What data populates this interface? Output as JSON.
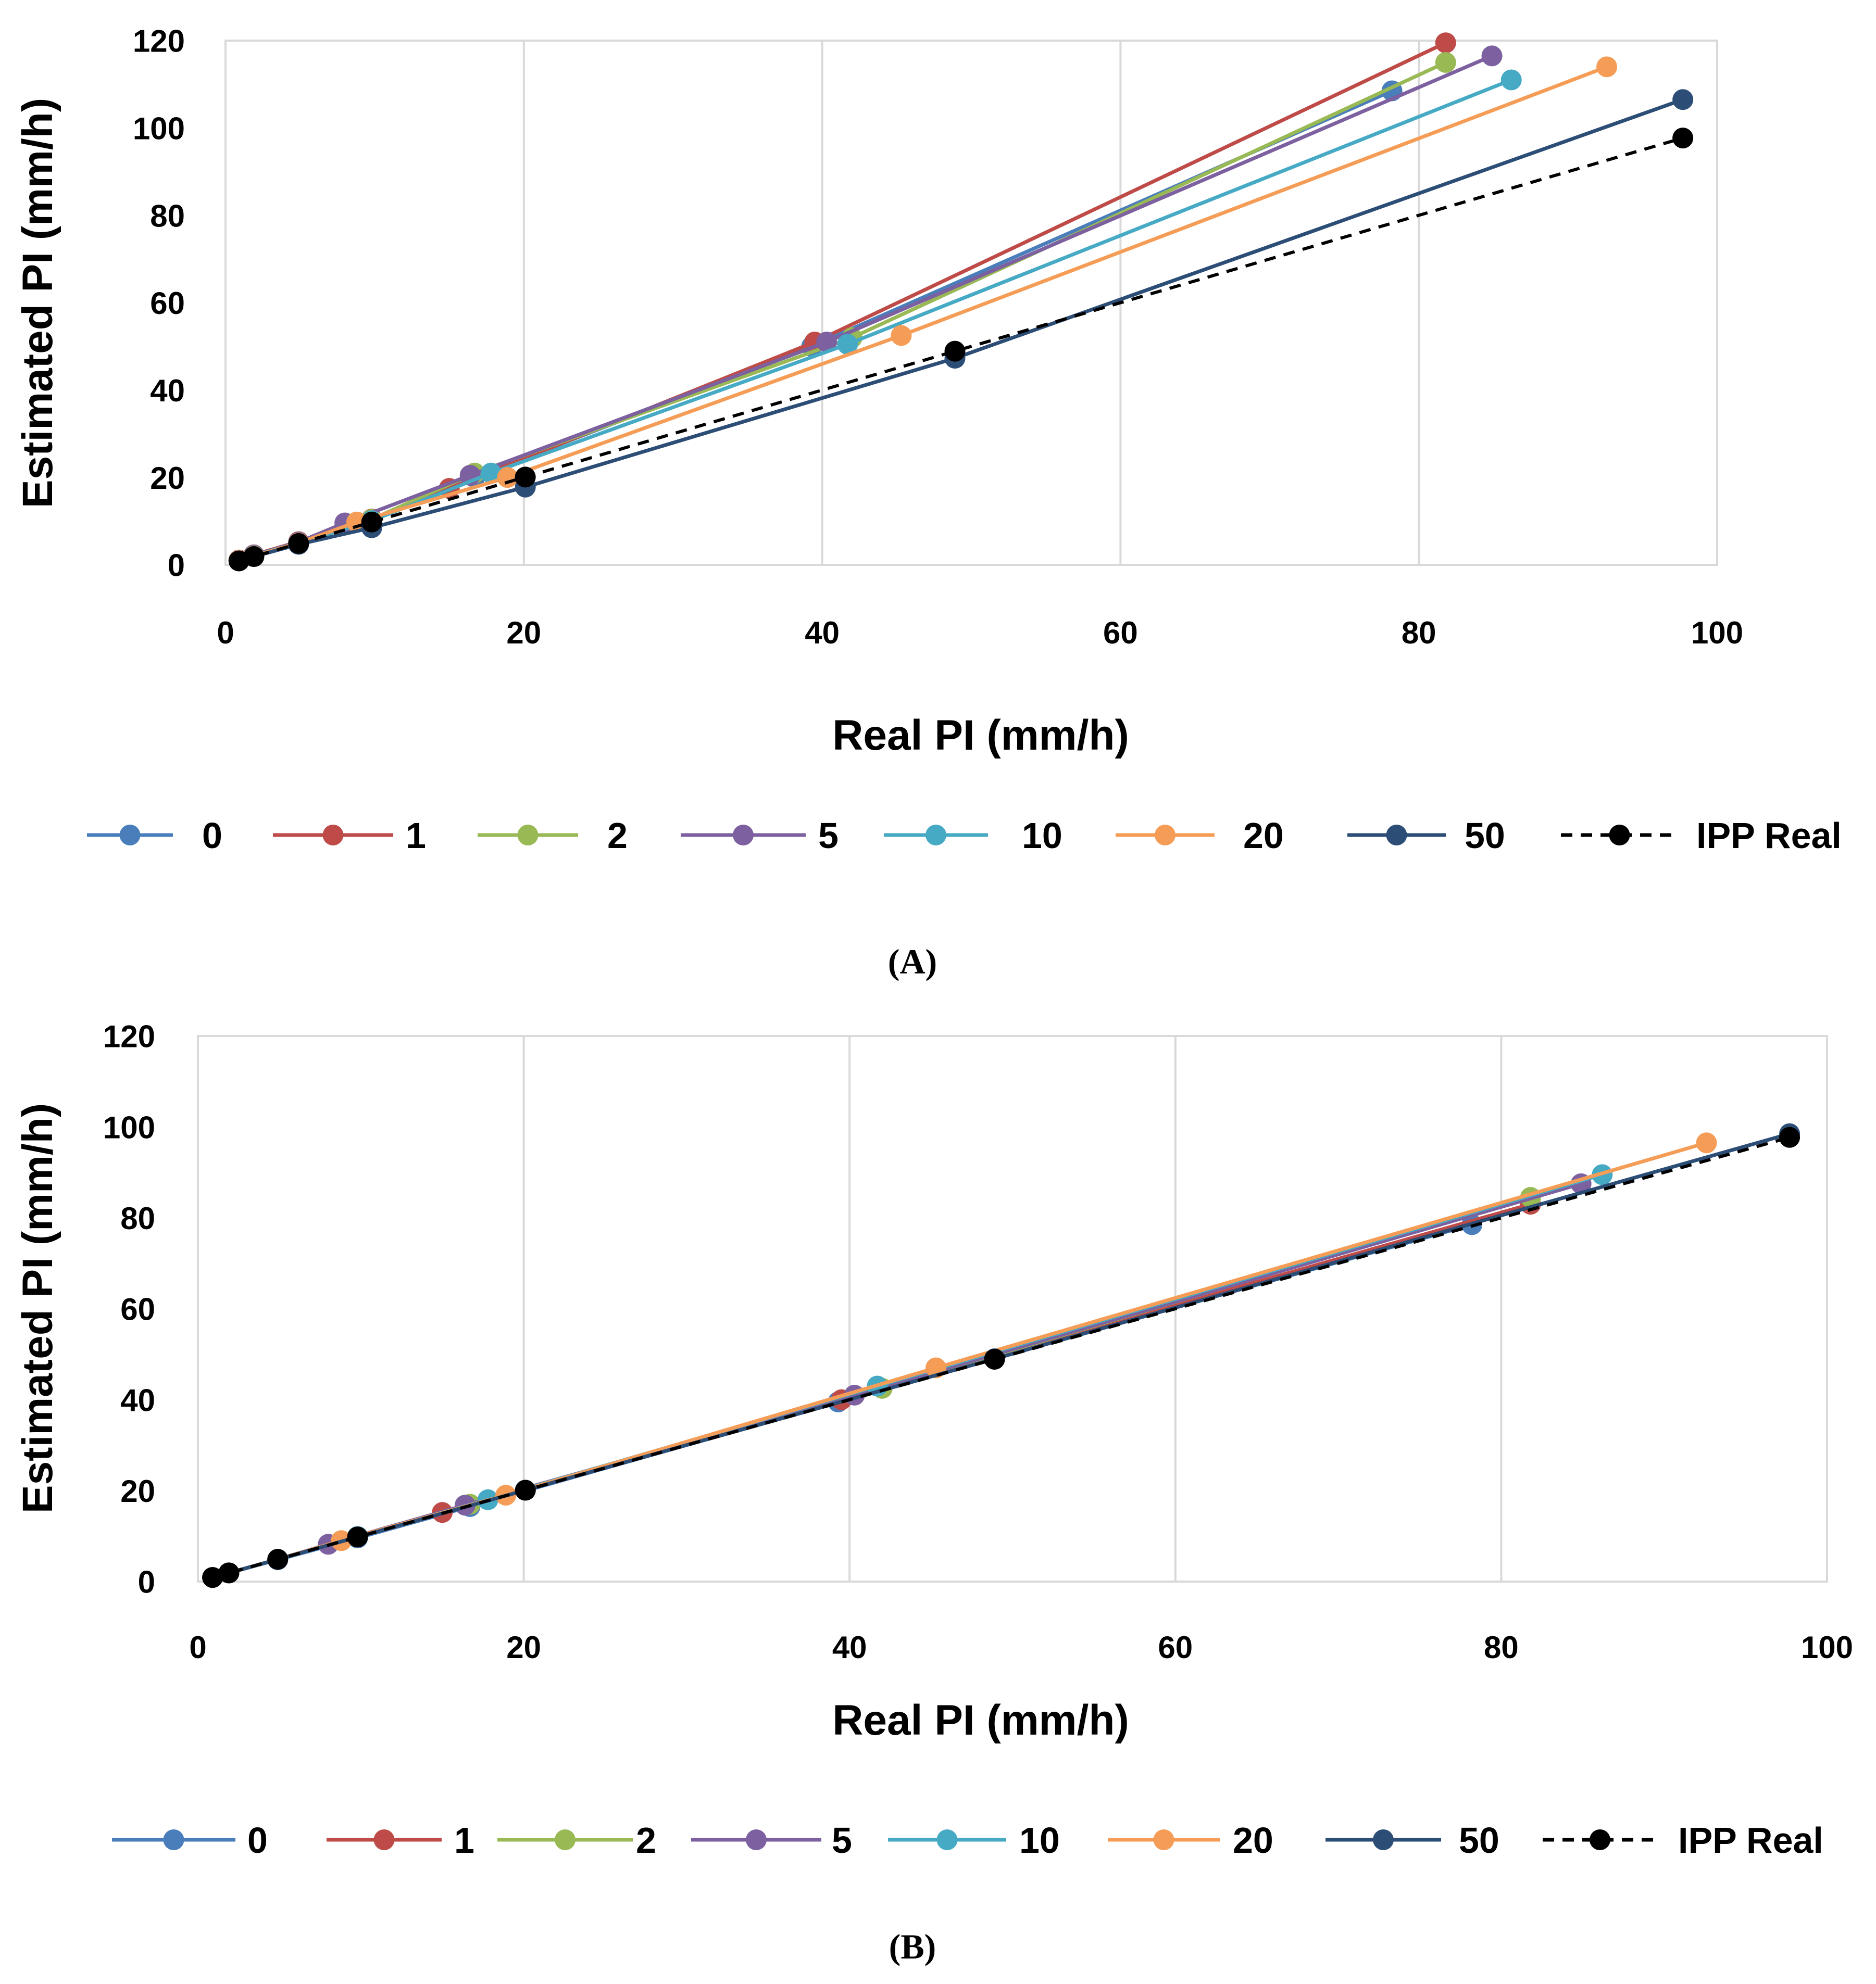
{
  "colors": {
    "0": "#4a7ebb",
    "1": "#be4b48",
    "2": "#98b954",
    "5": "#7d60a0",
    "10": "#46aac5",
    "20": "#f59d56",
    "50": "#2c4d75",
    "IPP Real": "#000000",
    "grid": "#d9d9d9"
  },
  "chart_data": [
    {
      "panel_label": "(A)",
      "type": "line",
      "xlabel": "Real PI (mm/h)",
      "ylabel": "Estimated PI (mm/h)",
      "xlim": [
        0,
        100
      ],
      "ylim": [
        0,
        120
      ],
      "xticks": [
        0,
        20,
        40,
        60,
        80,
        100
      ],
      "yticks": [
        0,
        20,
        40,
        60,
        80,
        100,
        120
      ],
      "grid": "vertical",
      "legend_position": "bottom",
      "series": [
        {
          "name": "0",
          "x": [
            0.9,
            1.9,
            4.9,
            9.8,
            16.7,
            39.3,
            78.2
          ],
          "y": [
            1.0,
            2.1,
            5.1,
            10.2,
            20.0,
            50.0,
            108.5
          ]
        },
        {
          "name": "1",
          "x": [
            0.9,
            1.9,
            4.9,
            9.8,
            15.0,
            39.5,
            81.8
          ],
          "y": [
            1.1,
            2.3,
            5.3,
            10.5,
            17.5,
            51.0,
            119.5
          ]
        },
        {
          "name": "2",
          "x": [
            0.9,
            1.9,
            4.9,
            9.8,
            16.7,
            42.0,
            81.8
          ],
          "y": [
            1.0,
            2.2,
            5.2,
            10.4,
            21.0,
            52.0,
            115.0
          ]
        },
        {
          "name": "5",
          "x": [
            0.9,
            1.9,
            4.9,
            8.0,
            16.4,
            40.3,
            84.9
          ],
          "y": [
            1.0,
            2.2,
            5.2,
            9.6,
            20.5,
            51.0,
            116.5
          ]
        },
        {
          "name": "10",
          "x": [
            0.9,
            1.9,
            4.9,
            9.8,
            17.8,
            41.7,
            86.2
          ],
          "y": [
            1.0,
            2.1,
            5.0,
            10.1,
            21.0,
            50.5,
            111.0
          ]
        },
        {
          "name": "20",
          "x": [
            0.9,
            1.9,
            4.9,
            8.8,
            18.9,
            45.3,
            92.6
          ],
          "y": [
            1.0,
            2.0,
            5.0,
            9.8,
            20.0,
            52.5,
            114.0
          ]
        },
        {
          "name": "50",
          "x": [
            0.9,
            1.9,
            4.9,
            9.8,
            20.1,
            48.9,
            97.7
          ],
          "y": [
            0.9,
            1.9,
            4.7,
            8.5,
            17.8,
            47.3,
            106.5
          ]
        },
        {
          "name": "IPP Real",
          "dashed": true,
          "x": [
            0.9,
            1.9,
            4.9,
            9.8,
            20.1,
            48.9,
            97.7
          ],
          "y": [
            0.9,
            1.9,
            4.9,
            9.8,
            20.1,
            48.9,
            97.7
          ]
        }
      ]
    },
    {
      "panel_label": "(B)",
      "type": "line",
      "xlabel": "Real PI  (mm/h)",
      "ylabel": "Estimated PI (mm/h)",
      "xlim": [
        0,
        100
      ],
      "ylim": [
        0,
        120
      ],
      "xticks": [
        0,
        20,
        40,
        60,
        80,
        100
      ],
      "yticks": [
        0,
        20,
        40,
        60,
        80,
        100,
        120
      ],
      "grid": "vertical",
      "legend_position": "bottom",
      "series": [
        {
          "name": "0",
          "x": [
            0.9,
            1.9,
            4.9,
            9.8,
            16.7,
            39.3,
            78.2
          ],
          "y": [
            0.9,
            1.9,
            4.8,
            9.6,
            16.5,
            39.5,
            78.5
          ]
        },
        {
          "name": "1",
          "x": [
            0.9,
            1.9,
            4.9,
            9.8,
            15.0,
            39.5,
            81.8
          ],
          "y": [
            0.9,
            1.9,
            4.9,
            9.9,
            15.2,
            40.0,
            83.0
          ]
        },
        {
          "name": "2",
          "x": [
            0.9,
            1.9,
            4.9,
            9.8,
            16.7,
            42.0,
            81.8
          ],
          "y": [
            0.9,
            1.9,
            4.9,
            9.9,
            17.0,
            42.5,
            84.5
          ]
        },
        {
          "name": "5",
          "x": [
            0.9,
            1.9,
            4.9,
            8.0,
            16.4,
            40.3,
            84.9
          ],
          "y": [
            0.9,
            1.9,
            4.9,
            8.2,
            16.8,
            41.0,
            87.5
          ]
        },
        {
          "name": "10",
          "x": [
            0.9,
            1.9,
            4.9,
            9.8,
            17.8,
            41.7,
            86.2
          ],
          "y": [
            0.9,
            1.9,
            4.9,
            9.9,
            18.0,
            43.0,
            89.5
          ]
        },
        {
          "name": "20",
          "x": [
            0.9,
            1.9,
            4.9,
            8.8,
            18.9,
            45.3,
            92.6
          ],
          "y": [
            0.9,
            1.9,
            4.9,
            9.0,
            19.0,
            47.0,
            96.5
          ]
        },
        {
          "name": "50",
          "x": [
            0.9,
            1.9,
            4.9,
            9.8,
            20.1,
            48.9,
            97.7
          ],
          "y": [
            0.9,
            1.9,
            4.9,
            9.8,
            20.1,
            49.0,
            98.5
          ]
        },
        {
          "name": "IPP Real",
          "dashed": true,
          "x": [
            0.9,
            1.9,
            4.9,
            9.8,
            20.1,
            48.9,
            97.7
          ],
          "y": [
            0.9,
            1.9,
            4.9,
            9.8,
            20.1,
            48.9,
            97.7
          ]
        }
      ]
    }
  ]
}
